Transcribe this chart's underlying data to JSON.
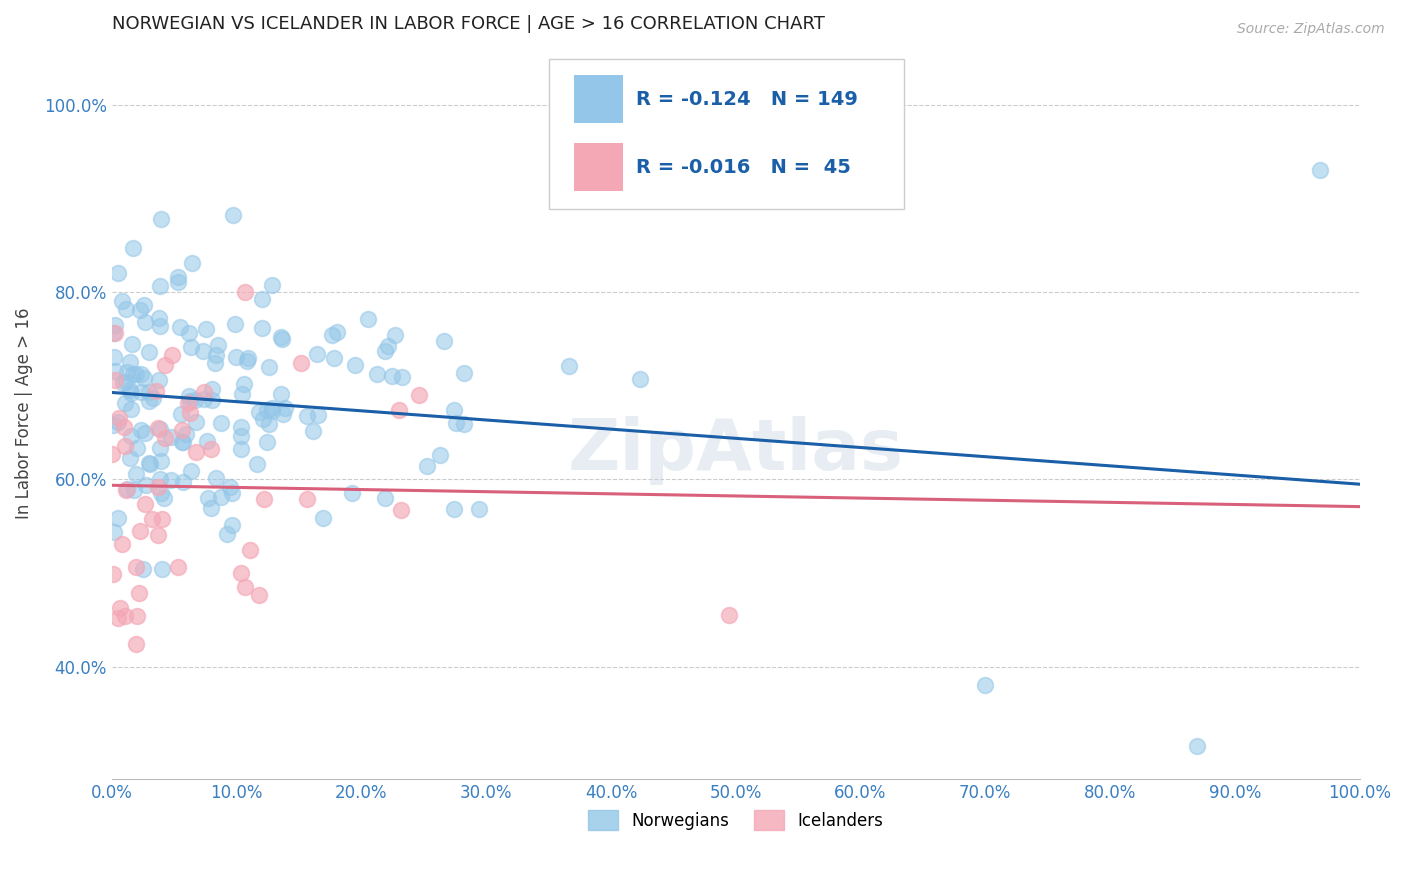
{
  "title": "NORWEGIAN VS ICELANDER IN LABOR FORCE | AGE > 16 CORRELATION CHART",
  "source": "Source: ZipAtlas.com",
  "ylabel": "In Labor Force | Age > 16",
  "xmin": 0.0,
  "xmax": 1.0,
  "ymin": 0.28,
  "ymax": 1.06,
  "norwegian_R": -0.124,
  "norwegian_N": 149,
  "icelander_R": -0.016,
  "icelander_N": 45,
  "norwegian_color": "#93c6e8",
  "icelander_color": "#f4a7b5",
  "norwegian_line_color": "#1a5fa8",
  "icelander_line_color": "#d9607a",
  "bg_color": "#ffffff",
  "grid_color": "#cccccc",
  "title_color": "#222222",
  "axis_label_color": "#444444",
  "tick_color": "#3a7fc1",
  "source_color": "#aaaaaa"
}
